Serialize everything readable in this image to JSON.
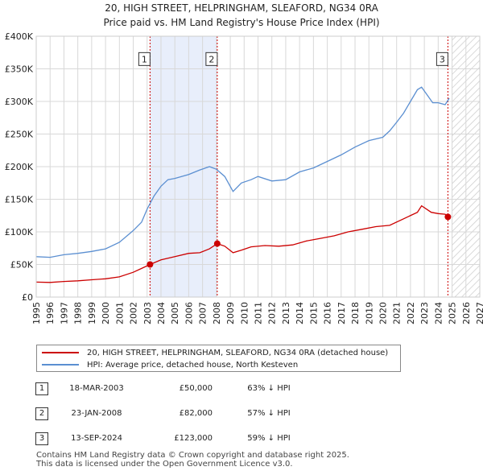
{
  "chart_data": {
    "type": "line",
    "title": "20, HIGH STREET, HELPRINGHAM, SLEAFORD, NG34 0RA",
    "subtitle": "Price paid vs. HM Land Registry's House Price Index (HPI)",
    "xlim": [
      1995,
      2027
    ],
    "ylim": [
      0,
      400000
    ],
    "x_ticks": [
      "1995",
      "1996",
      "1997",
      "1998",
      "1999",
      "2000",
      "2001",
      "2002",
      "2003",
      "2004",
      "2005",
      "2006",
      "2007",
      "2008",
      "2009",
      "2010",
      "2011",
      "2012",
      "2013",
      "2014",
      "2015",
      "2016",
      "2017",
      "2018",
      "2019",
      "2020",
      "2021",
      "2022",
      "2023",
      "2024",
      "2025",
      "2026",
      "2027"
    ],
    "y_ticks": [
      {
        "value": 0,
        "label": "£0"
      },
      {
        "value": 50000,
        "label": "£50K"
      },
      {
        "value": 100000,
        "label": "£100K"
      },
      {
        "value": 150000,
        "label": "£150K"
      },
      {
        "value": 200000,
        "label": "£200K"
      },
      {
        "value": 250000,
        "label": "£250K"
      },
      {
        "value": 300000,
        "label": "£300K"
      },
      {
        "value": 350000,
        "label": "£350K"
      },
      {
        "value": 400000,
        "label": "£400K"
      }
    ],
    "shaded_period": {
      "from": 2003.21,
      "to": 2008.06
    },
    "forecast_hatch_from": 2025.0,
    "series": [
      {
        "name": "20, HIGH STREET, HELPRINGHAM, SLEAFORD, NG34 0RA (detached house)",
        "color": "#cc0000",
        "points": [
          [
            1995.0,
            23000
          ],
          [
            1996.0,
            22500
          ],
          [
            1997.0,
            24000
          ],
          [
            1998.0,
            25000
          ],
          [
            1999.0,
            26500
          ],
          [
            2000.0,
            28000
          ],
          [
            2001.0,
            31000
          ],
          [
            2002.0,
            38000
          ],
          [
            2002.6,
            44000
          ],
          [
            2003.21,
            50000
          ],
          [
            2004.0,
            57000
          ],
          [
            2005.0,
            62000
          ],
          [
            2006.0,
            67000
          ],
          [
            2006.8,
            68000
          ],
          [
            2007.5,
            74000
          ],
          [
            2008.06,
            82000
          ],
          [
            2008.6,
            78000
          ],
          [
            2009.2,
            68000
          ],
          [
            2009.8,
            72000
          ],
          [
            2010.5,
            77000
          ],
          [
            2011.5,
            79000
          ],
          [
            2012.5,
            78000
          ],
          [
            2013.5,
            80000
          ],
          [
            2014.5,
            86000
          ],
          [
            2015.5,
            90000
          ],
          [
            2016.5,
            94000
          ],
          [
            2017.5,
            100000
          ],
          [
            2018.5,
            104000
          ],
          [
            2019.5,
            108000
          ],
          [
            2020.5,
            110000
          ],
          [
            2021.5,
            120000
          ],
          [
            2022.5,
            130000
          ],
          [
            2022.8,
            140000
          ],
          [
            2023.5,
            130000
          ],
          [
            2024.0,
            128000
          ],
          [
            2024.5,
            127000
          ],
          [
            2024.7,
            123000
          ]
        ]
      },
      {
        "name": "HPI: Average price, detached house, North Kesteven",
        "color": "#5b8fd1",
        "points": [
          [
            1995.0,
            62000
          ],
          [
            1996.0,
            61000
          ],
          [
            1997.0,
            65000
          ],
          [
            1998.0,
            67000
          ],
          [
            1999.0,
            70000
          ],
          [
            2000.0,
            74000
          ],
          [
            2001.0,
            84000
          ],
          [
            2002.0,
            102000
          ],
          [
            2002.6,
            115000
          ],
          [
            2003.0,
            135000
          ],
          [
            2003.5,
            155000
          ],
          [
            2004.0,
            170000
          ],
          [
            2004.5,
            180000
          ],
          [
            2005.0,
            182000
          ],
          [
            2006.0,
            188000
          ],
          [
            2006.8,
            195000
          ],
          [
            2007.5,
            200000
          ],
          [
            2008.0,
            196000
          ],
          [
            2008.6,
            185000
          ],
          [
            2009.2,
            162000
          ],
          [
            2009.8,
            175000
          ],
          [
            2010.5,
            180000
          ],
          [
            2011.0,
            185000
          ],
          [
            2012.0,
            178000
          ],
          [
            2013.0,
            180000
          ],
          [
            2014.0,
            192000
          ],
          [
            2015.0,
            198000
          ],
          [
            2016.0,
            208000
          ],
          [
            2017.0,
            218000
          ],
          [
            2018.0,
            230000
          ],
          [
            2019.0,
            240000
          ],
          [
            2020.0,
            245000
          ],
          [
            2020.5,
            255000
          ],
          [
            2021.0,
            268000
          ],
          [
            2021.5,
            282000
          ],
          [
            2022.0,
            300000
          ],
          [
            2022.5,
            318000
          ],
          [
            2022.8,
            322000
          ],
          [
            2023.2,
            310000
          ],
          [
            2023.6,
            298000
          ],
          [
            2024.0,
            298000
          ],
          [
            2024.5,
            295000
          ],
          [
            2024.8,
            305000
          ]
        ]
      }
    ],
    "sales": [
      {
        "id": "1",
        "x": 2003.21,
        "price": 50000
      },
      {
        "id": "2",
        "x": 2008.06,
        "price": 82000
      },
      {
        "id": "3",
        "x": 2024.7,
        "price": 123000
      }
    ],
    "marker_box_value": 365000
  },
  "legend": {
    "property_label": "20, HIGH STREET, HELPRINGHAM, SLEAFORD, NG34 0RA (detached house)",
    "hpi_label": "HPI: Average price, detached house, North Kesteven",
    "property_color": "#cc0000",
    "hpi_color": "#5b8fd1"
  },
  "sales_table": [
    {
      "id": "1",
      "date": "18-MAR-2003",
      "price": "£50,000",
      "hpi": "63% ↓ HPI"
    },
    {
      "id": "2",
      "date": "23-JAN-2008",
      "price": "£82,000",
      "hpi": "57% ↓ HPI"
    },
    {
      "id": "3",
      "date": "13-SEP-2024",
      "price": "£123,000",
      "hpi": "59% ↓ HPI"
    }
  ],
  "footer": {
    "line1": "Contains HM Land Registry data © Crown copyright and database right 2025.",
    "line2": "This data is licensed under the Open Government Licence v3.0."
  }
}
